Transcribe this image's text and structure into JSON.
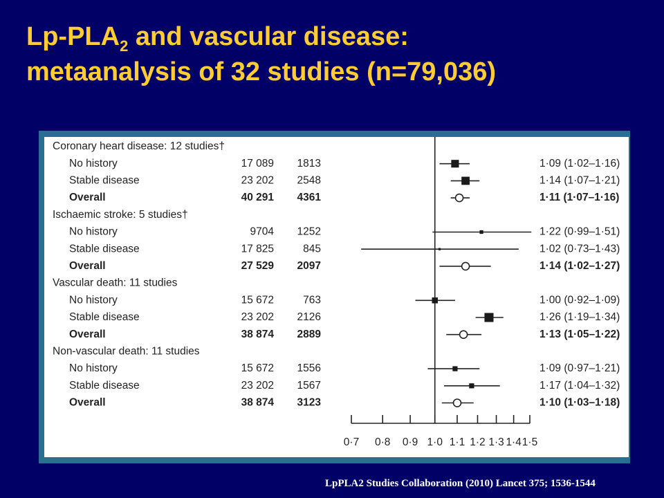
{
  "slide": {
    "title_line1_prefix": "Lp-PLA",
    "title_sub": "2",
    "title_line1_suffix": " and vascular disease:",
    "title_line2": "metaanalysis of 32 studies (n=79,036)",
    "citation": "LpPLA2 Studies Collaboration (2010) Lancet 375; 1536-1544"
  },
  "colors": {
    "background": "#000066",
    "title": "#ffcc33",
    "frame": "#2a6f8f",
    "marker": "#1a1a1a"
  },
  "chart_data": {
    "type": "forest",
    "reference_line": 1.0,
    "x_scale": "log",
    "xlim": [
      0.7,
      1.5
    ],
    "ticks": [
      0.7,
      0.8,
      0.9,
      1.0,
      1.1,
      1.2,
      1.3,
      1.4,
      1.5
    ],
    "tick_labels": [
      "0·7",
      "0·8",
      "0·9",
      "1·0",
      "1·1",
      "1·2",
      "1·3",
      "1·4",
      "1·5"
    ],
    "groups": [
      {
        "header": "Coronary heart disease: 12 studies†",
        "rows": [
          {
            "label": "No history",
            "participants": "17 089",
            "cases": "1813",
            "estimate": 1.09,
            "lo": 1.02,
            "hi": 1.16,
            "ci_text": "1·09 (1·02–1·16)",
            "marker": "square",
            "weight": 0.7,
            "bold": false
          },
          {
            "label": "Stable disease",
            "participants": "23 202",
            "cases": "2548",
            "estimate": 1.14,
            "lo": 1.07,
            "hi": 1.21,
            "ci_text": "1·14 (1·07–1·21)",
            "marker": "square",
            "weight": 0.75,
            "bold": false
          },
          {
            "label": "Overall",
            "participants": "40 291",
            "cases": "4361",
            "estimate": 1.11,
            "lo": 1.07,
            "hi": 1.16,
            "ci_text": "1·11 (1·07–1·16)",
            "marker": "circle",
            "weight": 0.5,
            "bold": true
          }
        ]
      },
      {
        "header": "Ischaemic stroke: 5 studies†",
        "rows": [
          {
            "label": "No history",
            "participants": "9704",
            "cases": "1252",
            "estimate": 1.22,
            "lo": 0.99,
            "hi": 1.51,
            "ci_text": "1·22 (0·99–1·51)",
            "marker": "square",
            "weight": 0.25,
            "bold": false
          },
          {
            "label": "Stable disease",
            "participants": "17 825",
            "cases": "845",
            "estimate": 1.02,
            "lo": 0.73,
            "hi": 1.43,
            "ci_text": "1·02 (0·73–1·43)",
            "marker": "square",
            "weight": 0.1,
            "bold": false
          },
          {
            "label": "Overall",
            "participants": "27 529",
            "cases": "2097",
            "estimate": 1.14,
            "lo": 1.02,
            "hi": 1.27,
            "ci_text": "1·14 (1·02–1·27)",
            "marker": "circle",
            "weight": 0.5,
            "bold": true
          }
        ]
      },
      {
        "header": "Vascular death: 11 studies",
        "rows": [
          {
            "label": "No history",
            "participants": "15 672",
            "cases": "763",
            "estimate": 1.0,
            "lo": 0.92,
            "hi": 1.09,
            "ci_text": "1·00 (0·92–1·09)",
            "marker": "square",
            "weight": 0.5,
            "bold": false
          },
          {
            "label": "Stable disease",
            "participants": "23 202",
            "cases": "2126",
            "estimate": 1.26,
            "lo": 1.19,
            "hi": 1.34,
            "ci_text": "1·26 (1·19–1·34)",
            "marker": "square",
            "weight": 0.85,
            "bold": false
          },
          {
            "label": "Overall",
            "participants": "38 874",
            "cases": "2889",
            "estimate": 1.13,
            "lo": 1.05,
            "hi": 1.22,
            "ci_text": "1·13 (1·05–1·22)",
            "marker": "circle",
            "weight": 0.5,
            "bold": true
          }
        ]
      },
      {
        "header": "Non-vascular death: 11 studies",
        "rows": [
          {
            "label": "No history",
            "participants": "15 672",
            "cases": "1556",
            "estimate": 1.09,
            "lo": 0.97,
            "hi": 1.21,
            "ci_text": "1·09 (0·97–1·21)",
            "marker": "square",
            "weight": 0.4,
            "bold": false
          },
          {
            "label": "Stable disease",
            "participants": "23 202",
            "cases": "1567",
            "estimate": 1.17,
            "lo": 1.04,
            "hi": 1.32,
            "ci_text": "1·17 (1·04–1·32)",
            "marker": "square",
            "weight": 0.4,
            "bold": false
          },
          {
            "label": "Overall",
            "participants": "38 874",
            "cases": "3123",
            "estimate": 1.1,
            "lo": 1.03,
            "hi": 1.18,
            "ci_text": "1·10 (1·03–1·18)",
            "marker": "circle",
            "weight": 0.5,
            "bold": true
          }
        ]
      }
    ]
  }
}
